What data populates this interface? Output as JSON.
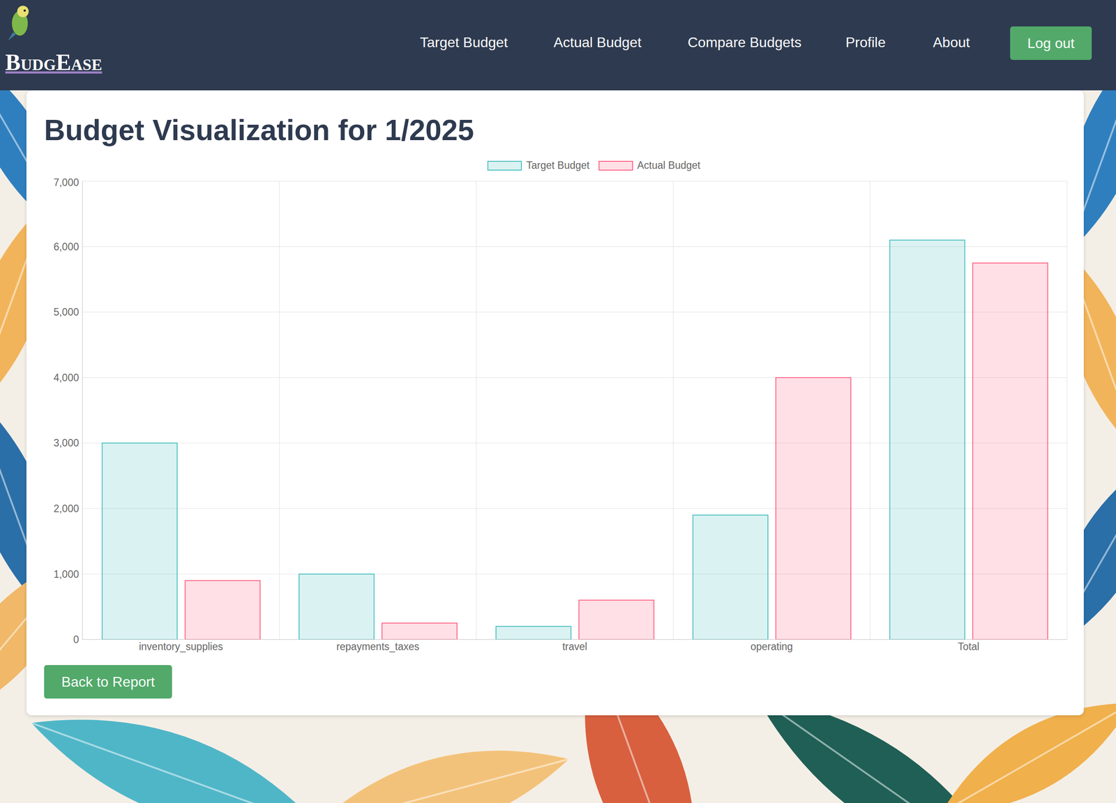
{
  "page": {
    "brand": "BudgEase",
    "nav": [
      "Target Budget",
      "Actual Budget",
      "Compare Budgets",
      "Profile",
      "About"
    ],
    "logout": "Log out",
    "back_button": "Back to Report"
  },
  "chart_data": {
    "type": "bar",
    "title": "Budget Visualization for 1/2025",
    "categories": [
      "inventory_supplies",
      "repayments_taxes",
      "travel",
      "operating",
      "Total"
    ],
    "series": [
      {
        "name": "Target Budget",
        "color": "#4bc0c0",
        "values": [
          3000,
          1000,
          200,
          1900,
          6100
        ]
      },
      {
        "name": "Actual Budget",
        "color": "#ff6384",
        "values": [
          900,
          250,
          600,
          4000,
          5750
        ]
      }
    ],
    "ylim": [
      0,
      7000
    ],
    "yticks": [
      0,
      {
        "value": 1000,
        "label": "1,000"
      },
      {
        "value": 2000,
        "label": "2,000"
      },
      {
        "value": 3000,
        "label": "3,000"
      },
      {
        "value": 4000,
        "label": "4,000"
      },
      {
        "value": 5000,
        "label": "5,000"
      },
      {
        "value": 6000,
        "label": "6,000"
      },
      {
        "value": 7000,
        "label": "7,000"
      }
    ],
    "grid": true,
    "legend": "top"
  }
}
